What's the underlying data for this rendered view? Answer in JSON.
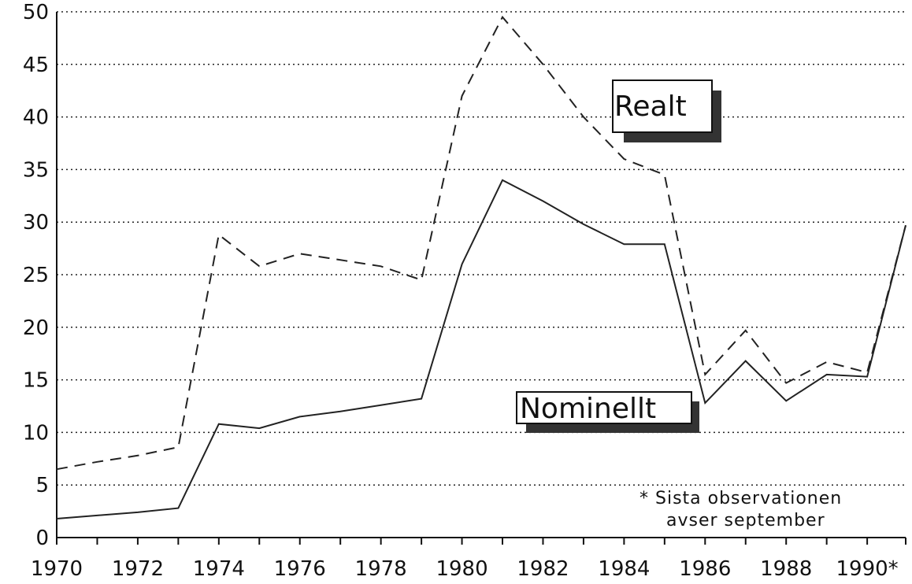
{
  "chart_data": {
    "type": "line",
    "title": "",
    "xlabel": "",
    "ylabel": "",
    "x": [
      1970,
      1971,
      1972,
      1973,
      1974,
      1975,
      1976,
      1977,
      1978,
      1979,
      1980,
      1981,
      1982,
      1983,
      1984,
      1985,
      1986,
      1987,
      1988,
      1989,
      1990,
      1991
    ],
    "x_tick_labels": [
      "1970",
      "1972",
      "1974",
      "1976",
      "1978",
      "1980",
      "1982",
      "1984",
      "1986",
      "1988",
      "1990*"
    ],
    "x_tick_values": [
      1970,
      1972,
      1974,
      1976,
      1978,
      1980,
      1982,
      1984,
      1986,
      1988,
      1990
    ],
    "xlim": [
      1970,
      1990.95
    ],
    "ylim": [
      0,
      50
    ],
    "y_ticks": [
      0,
      5,
      10,
      15,
      20,
      25,
      30,
      35,
      40,
      45,
      50
    ],
    "grid": true,
    "series": [
      {
        "name": "Realt",
        "style": "dashed",
        "values": [
          6.5,
          7.2,
          7.8,
          8.6,
          28.8,
          25.8,
          27.0,
          26.4,
          25.8,
          24.5,
          42.0,
          49.5,
          45.0,
          40.0,
          36.0,
          34.5,
          15.5,
          19.7,
          14.7,
          16.7,
          15.7,
          29.7
        ]
      },
      {
        "name": "Nominellt",
        "style": "solid",
        "values": [
          1.8,
          2.1,
          2.4,
          2.8,
          10.8,
          10.4,
          11.5,
          12.0,
          12.6,
          13.2,
          26.0,
          34.0,
          32.0,
          29.8,
          27.9,
          27.9,
          12.8,
          16.8,
          13.0,
          15.5,
          15.3,
          29.7
        ]
      }
    ],
    "annotation": [
      "* Sista observationen",
      "avser september"
    ],
    "colors": {
      "line": "#222222",
      "grid": "#222222",
      "background": "#ffffff"
    }
  }
}
